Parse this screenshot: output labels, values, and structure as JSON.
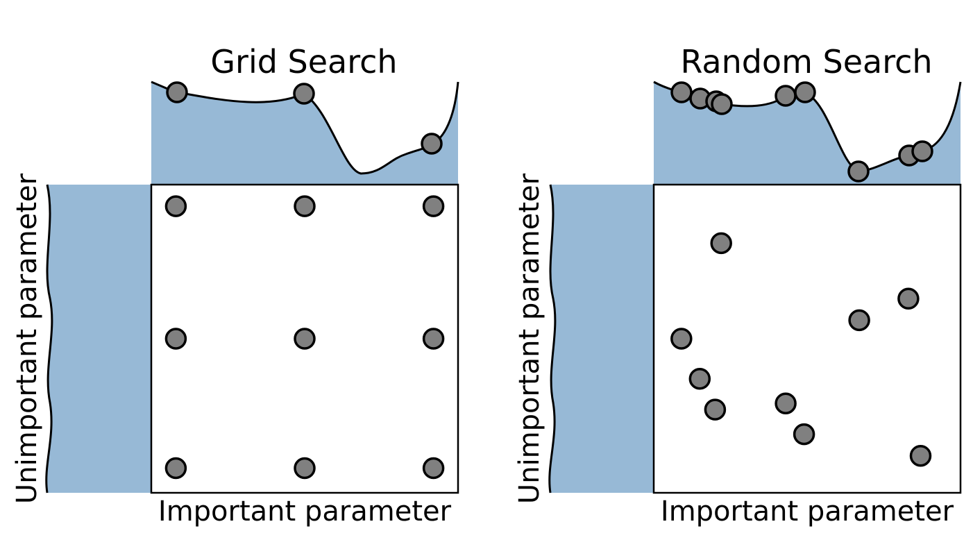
{
  "panels": [
    {
      "id": "grid",
      "title": "Grid Search",
      "xlabel": "Important parameter",
      "ylabel": "Unimportant parameter",
      "points": [
        {
          "x": 0.08,
          "y": 0.93
        },
        {
          "x": 0.5,
          "y": 0.93
        },
        {
          "x": 0.92,
          "y": 0.93
        },
        {
          "x": 0.08,
          "y": 0.5
        },
        {
          "x": 0.5,
          "y": 0.5
        },
        {
          "x": 0.92,
          "y": 0.5
        },
        {
          "x": 0.08,
          "y": 0.08
        },
        {
          "x": 0.5,
          "y": 0.08
        },
        {
          "x": 0.92,
          "y": 0.08
        }
      ]
    },
    {
      "id": "random",
      "title": "Random Search",
      "xlabel": "Important parameter",
      "ylabel": "Unimportant parameter",
      "points": [
        {
          "x": 0.22,
          "y": 0.81
        },
        {
          "x": 0.83,
          "y": 0.63
        },
        {
          "x": 0.67,
          "y": 0.56
        },
        {
          "x": 0.09,
          "y": 0.5
        },
        {
          "x": 0.15,
          "y": 0.37
        },
        {
          "x": 0.2,
          "y": 0.27
        },
        {
          "x": 0.43,
          "y": 0.29
        },
        {
          "x": 0.49,
          "y": 0.19
        },
        {
          "x": 0.87,
          "y": 0.12
        }
      ]
    }
  ],
  "colors": {
    "fill": "#97b9d6",
    "point": "#808080",
    "stroke": "#000000"
  }
}
